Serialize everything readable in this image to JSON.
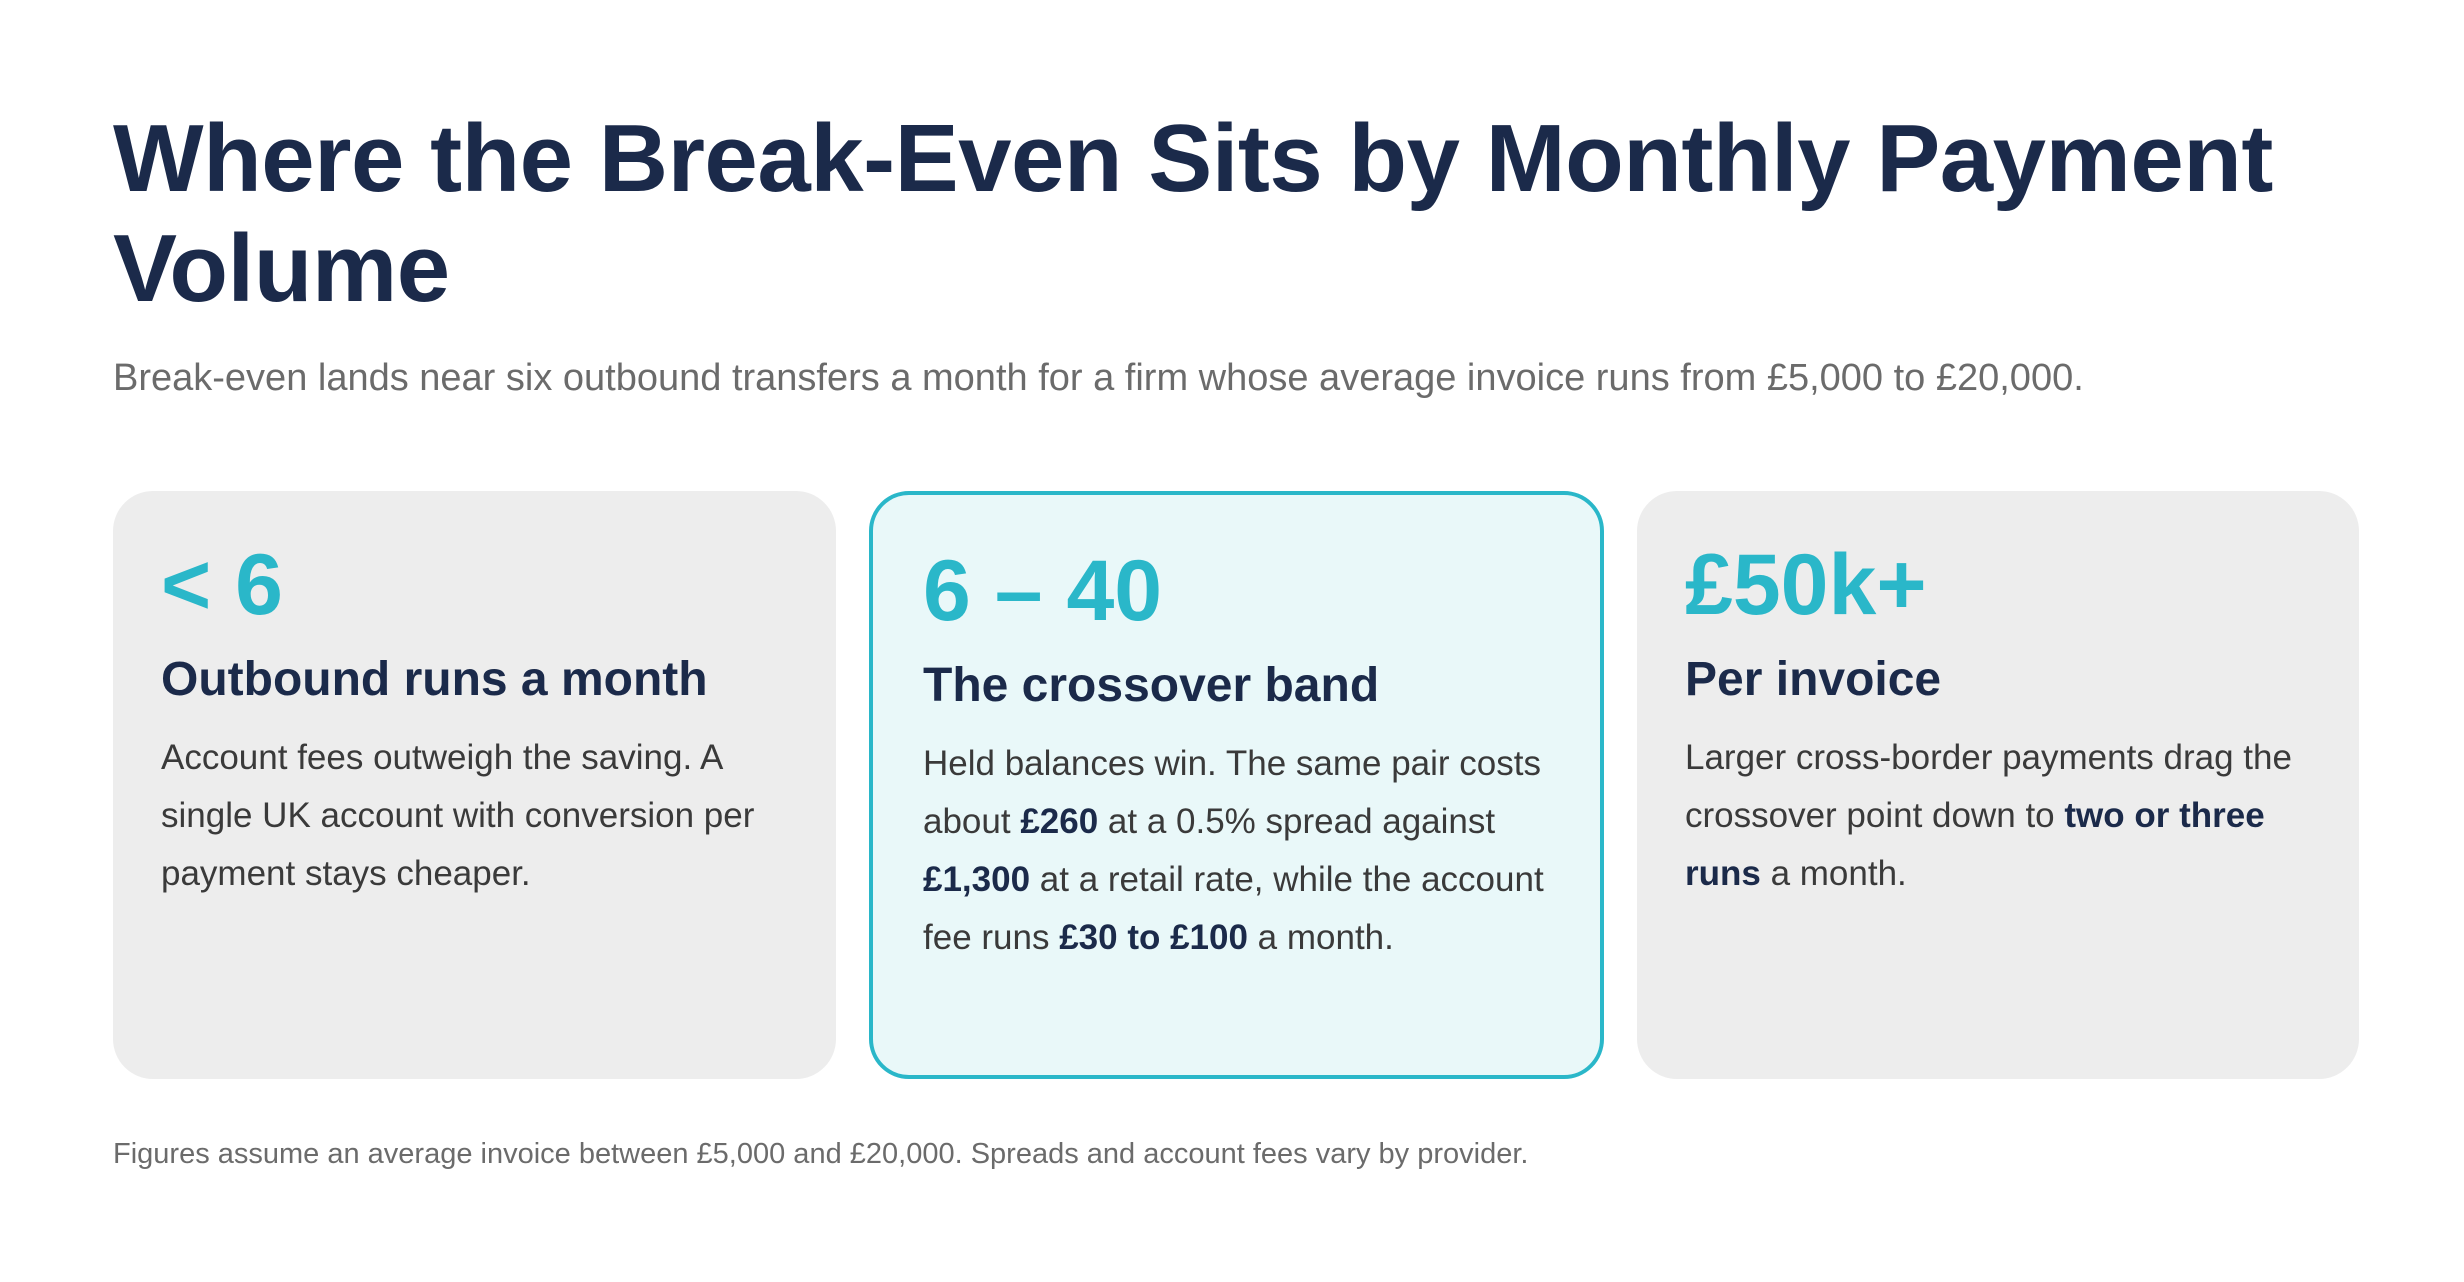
{
  "header": {
    "title": "Where the Break-Even Sits by Monthly Payment Volume",
    "subtitle": "Break-even lands near six outbound transfers a month for a firm whose average invoice runs from £5,000 to £20,000."
  },
  "cards": [
    {
      "value": "< 6",
      "heading": "Outbound runs a month",
      "body": [
        {
          "text": "Account fees outweigh the saving. A single UK account with conversion per payment stays cheaper."
        }
      ]
    },
    {
      "value": "6 – 40",
      "heading": "The crossover band",
      "highlighted": true,
      "body": [
        {
          "text": "Held balances win. The same pair costs about "
        },
        {
          "text": "£260",
          "bold": true
        },
        {
          "text": " at a 0.5% spread against "
        },
        {
          "text": "£1,300",
          "bold": true
        },
        {
          "text": " at a retail rate, while the account fee runs "
        },
        {
          "text": "£30 to £100",
          "bold": true
        },
        {
          "text": " a month."
        }
      ]
    },
    {
      "value": "£50k+",
      "heading": "Per invoice",
      "body": [
        {
          "text": "Larger cross-border payments drag the crossover point down to "
        },
        {
          "text": "two or three runs",
          "bold": true
        },
        {
          "text": " a month."
        }
      ]
    }
  ],
  "footnote": "Figures assume an average invoice between £5,000 and £20,000. Spreads and account fees vary by provider.",
  "colors": {
    "accent": "#2ab7c9",
    "navy": "#1b2a4a",
    "card_bg": "#ededed",
    "highlight_bg": "#e9f8f9"
  }
}
